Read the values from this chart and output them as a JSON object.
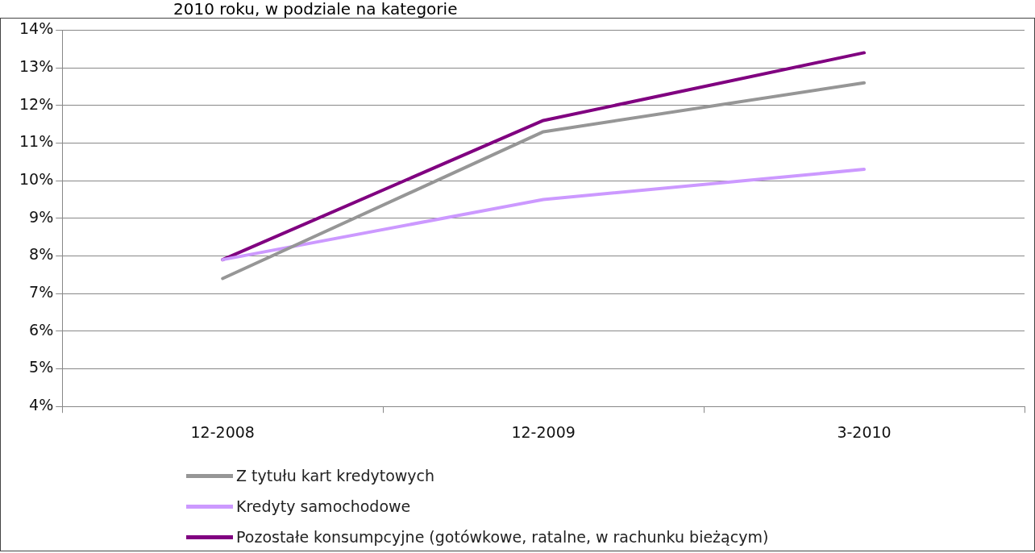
{
  "chart_data": {
    "type": "line",
    "title": "2010 roku, w podziale na kategorie",
    "categories": [
      "12-2008",
      "12-2009",
      "3-2010"
    ],
    "series": [
      {
        "name": "Z tytułu kart kredytowych",
        "color": "#969696",
        "values": [
          7.4,
          11.3,
          12.6
        ]
      },
      {
        "name": "Kredyty samochodowe",
        "color": "#cc99ff",
        "values": [
          7.9,
          9.5,
          10.3
        ]
      },
      {
        "name": "Pozostałe konsumpcyjne (gotówkowe, ratalne, w rachunku bieżącym)",
        "color": "#800080",
        "values": [
          7.9,
          11.6,
          13.4
        ]
      }
    ],
    "ylim": [
      4,
      14
    ],
    "yticks": [
      {
        "value": 4,
        "label": "4%"
      },
      {
        "value": 5,
        "label": "5%"
      },
      {
        "value": 6,
        "label": "6%"
      },
      {
        "value": 7,
        "label": "7%"
      },
      {
        "value": 8,
        "label": "8%"
      },
      {
        "value": 9,
        "label": "9%"
      },
      {
        "value": 10,
        "label": "10%"
      },
      {
        "value": 11,
        "label": "11%"
      },
      {
        "value": 12,
        "label": "12%"
      },
      {
        "value": 13,
        "label": "13%"
      },
      {
        "value": 14,
        "label": "14%"
      }
    ],
    "grid": "y",
    "legend": "bottom",
    "marker": "none",
    "line_style": "solid"
  }
}
